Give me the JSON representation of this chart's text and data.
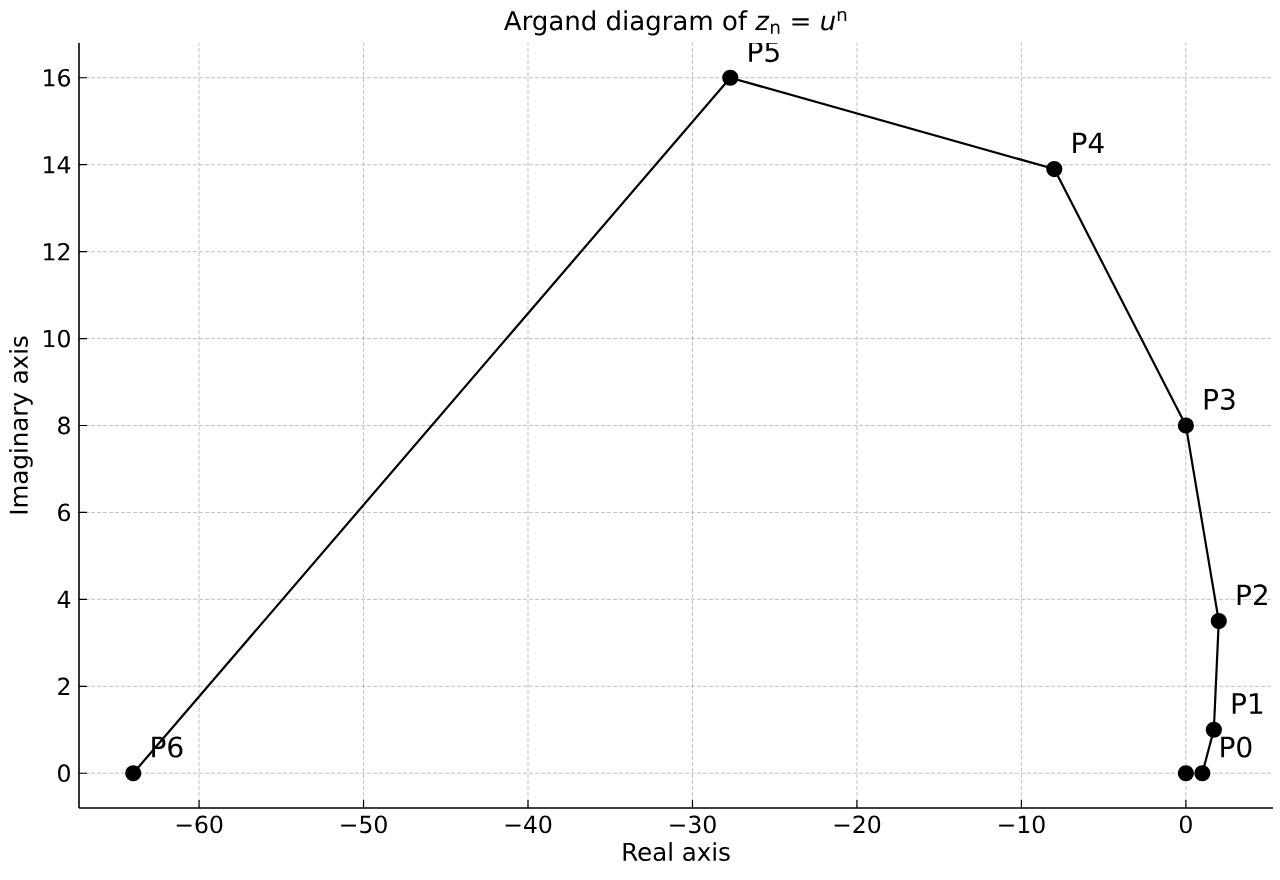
{
  "chart_data": {
    "type": "line",
    "title": "Argand diagram of *z*$_{n}$ = *u*$^{n}$",
    "xlabel": "Real axis",
    "ylabel": "Imaginary axis",
    "series": [
      {
        "type": "line",
        "color": "#000000",
        "x": [
          1,
          1.7,
          2,
          0,
          -8,
          -27.7,
          -64
        ],
        "values": [
          0,
          1,
          3.5,
          8,
          13.9,
          16,
          0
        ]
      },
      {
        "type": "scatter",
        "color": "#000000",
        "x": [
          0
        ],
        "values": [
          0
        ]
      }
    ],
    "marker": "circle",
    "line_style": "solid",
    "grid": true,
    "xlim": [
      -67.3,
      5.3
    ],
    "ylim": [
      -0.8,
      16.8
    ],
    "xticks": [
      {
        "value": -60,
        "label": "−60"
      },
      {
        "value": -50,
        "label": "−50"
      },
      {
        "value": -40,
        "label": "−40"
      },
      {
        "value": -30,
        "label": "−30"
      },
      {
        "value": -20,
        "label": "−20"
      },
      {
        "value": -10,
        "label": "−10"
      },
      0
    ],
    "yticks": [
      0,
      2,
      4,
      6,
      8,
      10,
      12,
      14,
      16
    ],
    "annotations": [
      {
        "text": "P0",
        "x": 1,
        "y": 0
      },
      {
        "text": "P1",
        "x": 1.7,
        "y": 1
      },
      {
        "text": "P2",
        "x": 2,
        "y": 3.5
      },
      {
        "text": "P3",
        "x": 0,
        "y": 8
      },
      {
        "text": "P4",
        "x": -8,
        "y": 13.9
      },
      {
        "text": "P5",
        "x": -27.7,
        "y": 16
      },
      {
        "text": "P6",
        "x": -64,
        "y": 0
      }
    ]
  }
}
